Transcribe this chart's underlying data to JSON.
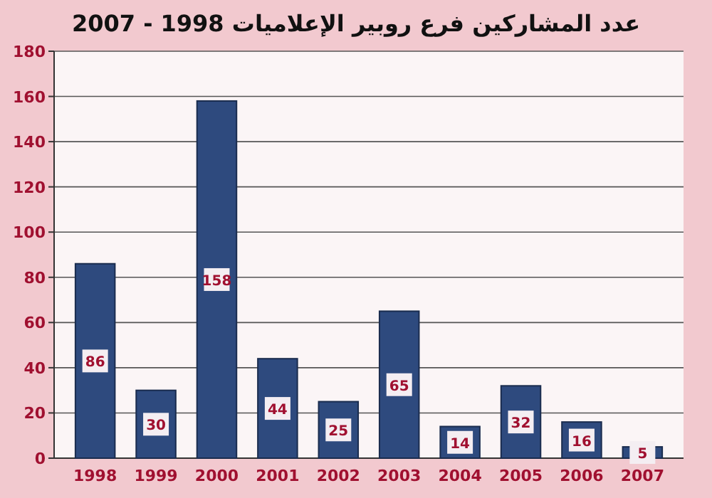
{
  "chart_data": {
    "type": "bar",
    "title": "عدد المشاركين فرع روبير الإعلاميات 1998 - 2007",
    "categories": [
      "1998",
      "1999",
      "2000",
      "2001",
      "2002",
      "2003",
      "2004",
      "2005",
      "2006",
      "2007"
    ],
    "values": [
      86,
      30,
      158,
      44,
      25,
      65,
      14,
      32,
      16,
      5
    ],
    "color": "#2e4a7e",
    "ylim": [
      0,
      180
    ],
    "yticks": [
      0,
      20,
      40,
      60,
      80,
      100,
      120,
      140,
      160,
      180
    ],
    "grid": "y",
    "data_labels": true
  }
}
